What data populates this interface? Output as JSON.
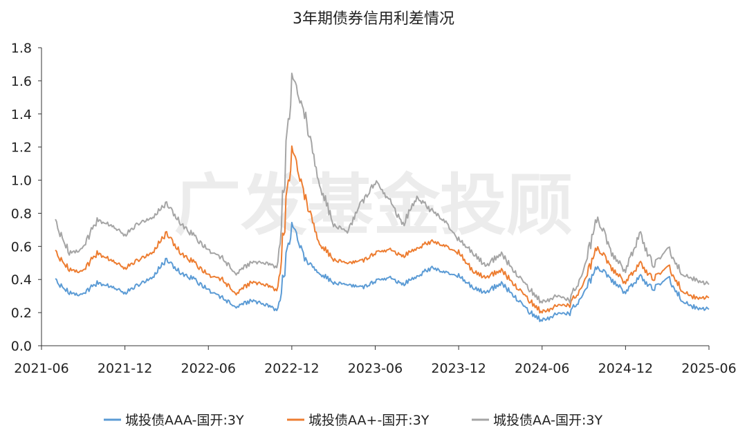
{
  "chart_data": {
    "type": "line",
    "title": "3年期债券信用利差情况",
    "watermark": "广发基金投顾",
    "xlabel": "",
    "ylabel": "",
    "ylim": [
      0,
      1.8
    ],
    "yticks": [
      "0.0",
      "0.2",
      "0.4",
      "0.6",
      "0.8",
      "1.0",
      "1.2",
      "1.4",
      "1.6",
      "1.8"
    ],
    "xlim": [
      "2021-06",
      "2025-06"
    ],
    "xticks": [
      "2021-06",
      "2021-12",
      "2022-06",
      "2022-12",
      "2023-06",
      "2023-12",
      "2024-06",
      "2024-12",
      "2025-06"
    ],
    "grid": false,
    "legend_position": "bottom",
    "series": [
      {
        "name": "城投债AAA-国开:3Y",
        "color": "#5b9bd5",
        "points": [
          [
            "2021-07",
            0.39
          ],
          [
            "2021-08",
            0.32
          ],
          [
            "2021-09",
            0.31
          ],
          [
            "2021-10",
            0.38
          ],
          [
            "2021-11",
            0.36
          ],
          [
            "2021-12",
            0.32
          ],
          [
            "2022-01",
            0.37
          ],
          [
            "2022-02",
            0.42
          ],
          [
            "2022-03",
            0.52
          ],
          [
            "2022-04",
            0.44
          ],
          [
            "2022-05",
            0.4
          ],
          [
            "2022-06",
            0.34
          ],
          [
            "2022-07",
            0.29
          ],
          [
            "2022-08",
            0.23
          ],
          [
            "2022-09",
            0.27
          ],
          [
            "2022-10",
            0.25
          ],
          [
            "2022-11",
            0.21
          ],
          [
            "2022-12",
            0.74
          ],
          [
            "2023-01",
            0.52
          ],
          [
            "2023-02",
            0.44
          ],
          [
            "2023-03",
            0.38
          ],
          [
            "2023-04",
            0.37
          ],
          [
            "2023-05",
            0.35
          ],
          [
            "2023-06",
            0.39
          ],
          [
            "2023-07",
            0.41
          ],
          [
            "2023-08",
            0.37
          ],
          [
            "2023-09",
            0.42
          ],
          [
            "2023-10",
            0.47
          ],
          [
            "2023-11",
            0.45
          ],
          [
            "2023-12",
            0.42
          ],
          [
            "2024-01",
            0.35
          ],
          [
            "2024-02",
            0.32
          ],
          [
            "2024-03",
            0.38
          ],
          [
            "2024-04",
            0.3
          ],
          [
            "2024-05",
            0.21
          ],
          [
            "2024-06",
            0.15
          ],
          [
            "2024-07",
            0.19
          ],
          [
            "2024-08",
            0.2
          ],
          [
            "2024-09",
            0.32
          ],
          [
            "2024-10",
            0.48
          ],
          [
            "2024-11",
            0.4
          ],
          [
            "2024-12",
            0.32
          ],
          [
            "2025-01",
            0.42
          ],
          [
            "2025-02",
            0.34
          ],
          [
            "2025-03",
            0.42
          ],
          [
            "2025-04",
            0.28
          ],
          [
            "2025-05",
            0.23
          ],
          [
            "2025-06",
            0.22
          ]
        ]
      },
      {
        "name": "城投债AA+-国开:3Y",
        "color": "#ed7d31",
        "points": [
          [
            "2021-07",
            0.56
          ],
          [
            "2021-08",
            0.46
          ],
          [
            "2021-09",
            0.45
          ],
          [
            "2021-10",
            0.56
          ],
          [
            "2021-11",
            0.52
          ],
          [
            "2021-12",
            0.47
          ],
          [
            "2022-01",
            0.52
          ],
          [
            "2022-02",
            0.57
          ],
          [
            "2022-03",
            0.68
          ],
          [
            "2022-04",
            0.56
          ],
          [
            "2022-05",
            0.5
          ],
          [
            "2022-06",
            0.43
          ],
          [
            "2022-07",
            0.4
          ],
          [
            "2022-08",
            0.31
          ],
          [
            "2022-09",
            0.38
          ],
          [
            "2022-10",
            0.37
          ],
          [
            "2022-11",
            0.33
          ],
          [
            "2022-12",
            1.2
          ],
          [
            "2023-01",
            0.89
          ],
          [
            "2023-02",
            0.62
          ],
          [
            "2023-03",
            0.52
          ],
          [
            "2023-04",
            0.5
          ],
          [
            "2023-05",
            0.51
          ],
          [
            "2023-06",
            0.56
          ],
          [
            "2023-07",
            0.58
          ],
          [
            "2023-08",
            0.54
          ],
          [
            "2023-09",
            0.59
          ],
          [
            "2023-10",
            0.63
          ],
          [
            "2023-11",
            0.61
          ],
          [
            "2023-12",
            0.56
          ],
          [
            "2024-01",
            0.45
          ],
          [
            "2024-02",
            0.41
          ],
          [
            "2024-03",
            0.46
          ],
          [
            "2024-04",
            0.37
          ],
          [
            "2024-05",
            0.28
          ],
          [
            "2024-06",
            0.2
          ],
          [
            "2024-07",
            0.24
          ],
          [
            "2024-08",
            0.25
          ],
          [
            "2024-09",
            0.38
          ],
          [
            "2024-10",
            0.6
          ],
          [
            "2024-11",
            0.47
          ],
          [
            "2024-12",
            0.38
          ],
          [
            "2025-01",
            0.5
          ],
          [
            "2025-02",
            0.4
          ],
          [
            "2025-03",
            0.49
          ],
          [
            "2025-04",
            0.34
          ],
          [
            "2025-05",
            0.29
          ],
          [
            "2025-06",
            0.29
          ]
        ]
      },
      {
        "name": "城投债AA-国开:3Y",
        "color": "#a5a5a5",
        "points": [
          [
            "2021-07",
            0.74
          ],
          [
            "2021-08",
            0.56
          ],
          [
            "2021-09",
            0.59
          ],
          [
            "2021-10",
            0.76
          ],
          [
            "2021-11",
            0.73
          ],
          [
            "2021-12",
            0.67
          ],
          [
            "2022-01",
            0.74
          ],
          [
            "2022-02",
            0.78
          ],
          [
            "2022-03",
            0.86
          ],
          [
            "2022-04",
            0.74
          ],
          [
            "2022-05",
            0.66
          ],
          [
            "2022-06",
            0.58
          ],
          [
            "2022-07",
            0.53
          ],
          [
            "2022-08",
            0.43
          ],
          [
            "2022-09",
            0.5
          ],
          [
            "2022-10",
            0.5
          ],
          [
            "2022-11",
            0.47
          ],
          [
            "2022-12",
            1.64
          ],
          [
            "2023-01",
            1.38
          ],
          [
            "2023-02",
            0.98
          ],
          [
            "2023-03",
            0.73
          ],
          [
            "2023-04",
            0.69
          ],
          [
            "2023-05",
            0.86
          ],
          [
            "2023-06",
            0.99
          ],
          [
            "2023-07",
            0.88
          ],
          [
            "2023-08",
            0.73
          ],
          [
            "2023-09",
            0.9
          ],
          [
            "2023-10",
            0.82
          ],
          [
            "2023-11",
            0.76
          ],
          [
            "2023-12",
            0.64
          ],
          [
            "2024-01",
            0.56
          ],
          [
            "2024-02",
            0.48
          ],
          [
            "2024-03",
            0.56
          ],
          [
            "2024-04",
            0.45
          ],
          [
            "2024-05",
            0.35
          ],
          [
            "2024-06",
            0.26
          ],
          [
            "2024-07",
            0.3
          ],
          [
            "2024-08",
            0.28
          ],
          [
            "2024-09",
            0.46
          ],
          [
            "2024-10",
            0.78
          ],
          [
            "2024-11",
            0.56
          ],
          [
            "2024-12",
            0.45
          ],
          [
            "2025-01",
            0.68
          ],
          [
            "2025-02",
            0.48
          ],
          [
            "2025-03",
            0.6
          ],
          [
            "2025-04",
            0.44
          ],
          [
            "2025-05",
            0.4
          ],
          [
            "2025-06",
            0.37
          ]
        ]
      }
    ]
  }
}
